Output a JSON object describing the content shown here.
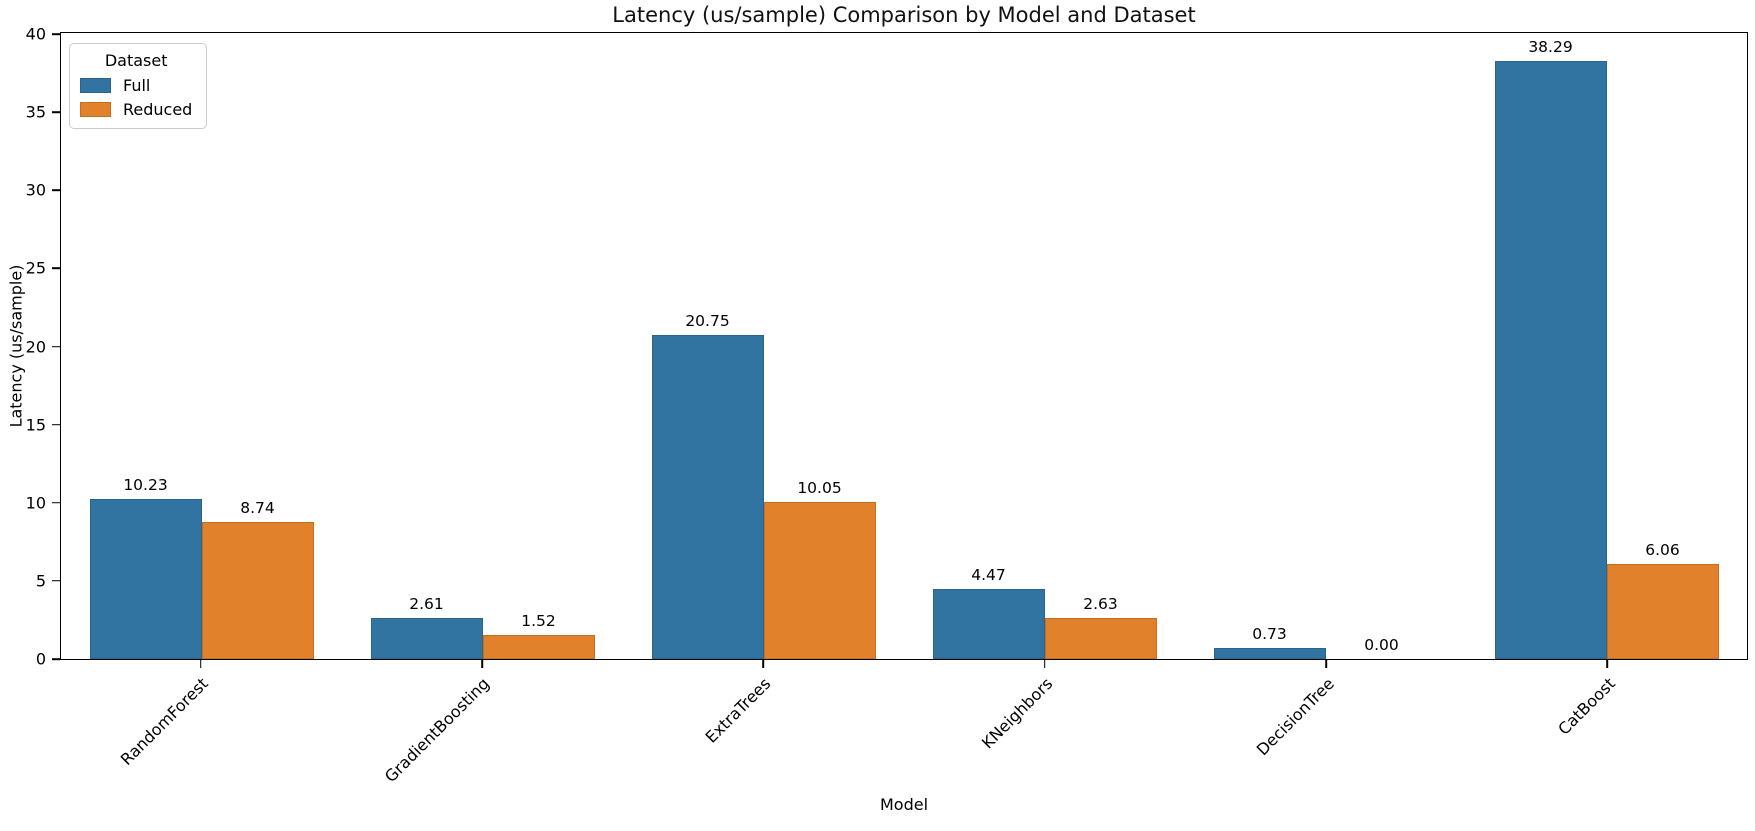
{
  "title": "Latency (us/sample) Comparison by Model and Dataset",
  "chart_data": {
    "type": "bar",
    "title": "Latency (us/sample) Comparison by Model and Dataset",
    "xlabel": "Model",
    "ylabel": "Latency (us/sample)",
    "categories": [
      "RandomForest",
      "GradientBoosting",
      "ExtraTrees",
      "KNeighbors",
      "DecisionTree",
      "CatBoost"
    ],
    "series": [
      {
        "name": "Full",
        "color": "#3274A1",
        "edge_color": "#2a648c",
        "values": [
          10.23,
          2.61,
          20.75,
          4.47,
          0.73,
          38.29
        ]
      },
      {
        "name": "Reduced",
        "color": "#E1812C",
        "edge_color": "#c76f20",
        "values": [
          8.74,
          1.52,
          10.05,
          2.63,
          0.0,
          6.06
        ]
      }
    ],
    "ylim": [
      0,
      40
    ],
    "yticks": [
      0,
      5,
      10,
      15,
      20,
      25,
      30,
      35,
      40
    ],
    "grid": false,
    "bar_value_labels": true,
    "value_label_decimals": 2,
    "legend": {
      "title": "Dataset",
      "position": "upper-left",
      "entries": [
        "Full",
        "Reduced"
      ]
    }
  }
}
